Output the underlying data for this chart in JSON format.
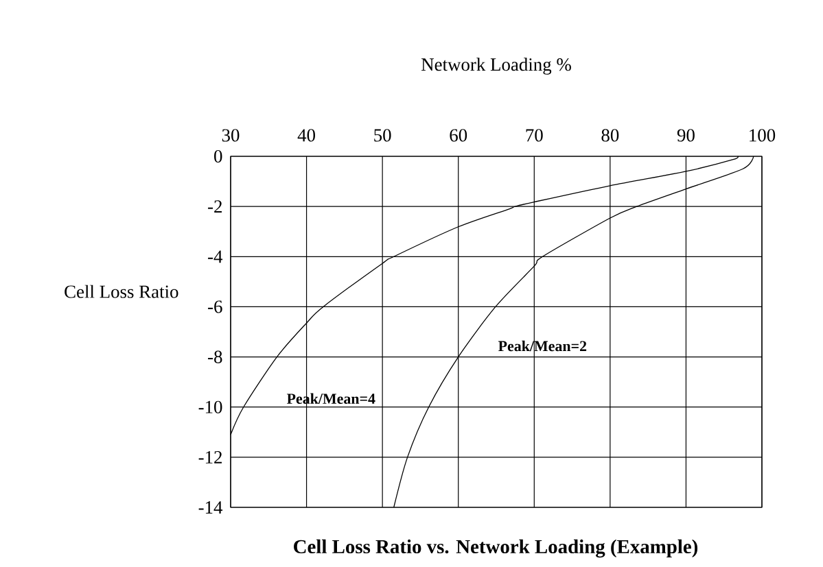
{
  "chart_data": {
    "type": "line",
    "title": "Cell Loss Ratio vs. Network Loading (Example)",
    "xlabel": "Network Loading %",
    "ylabel": "Cell Loss Ratio",
    "xlim": [
      30,
      100
    ],
    "xticks": [
      30,
      40,
      50,
      60,
      70,
      80,
      90,
      100
    ],
    "ylim": [
      -14,
      0
    ],
    "yticks": [
      0,
      -2,
      -4,
      -6,
      -8,
      -10,
      -12,
      -14
    ],
    "grid": true,
    "legend": false,
    "marker": "none",
    "line_style": "solid",
    "series": [
      {
        "color": "#000000",
        "x": [
          30,
          31.7,
          36.1,
          40,
          42.2,
          50,
          51.5,
          60,
          66.7,
          67.5,
          70,
          80,
          90,
          96.2,
          96.8
        ],
        "values": [
          -11.1,
          -10,
          -8,
          -6.65,
          -6,
          -4.27,
          -4,
          -2.81,
          -2.1,
          -2,
          -1.82,
          -1.17,
          -0.6,
          -0.13,
          0
        ]
      },
      {
        "color": "#000000",
        "x": [
          51.5,
          53.3,
          56.1,
          60,
          64.9,
          70,
          71.1,
          80,
          83.5,
          90,
          97.5,
          98.9
        ],
        "values": [
          -14,
          -12,
          -10,
          -8,
          -6,
          -4.38,
          -4,
          -2.46,
          -2,
          -1.3,
          -0.5,
          0
        ]
      }
    ],
    "annotations": [
      "Peak/Mean=4",
      "Peak/Mean=2"
    ]
  }
}
